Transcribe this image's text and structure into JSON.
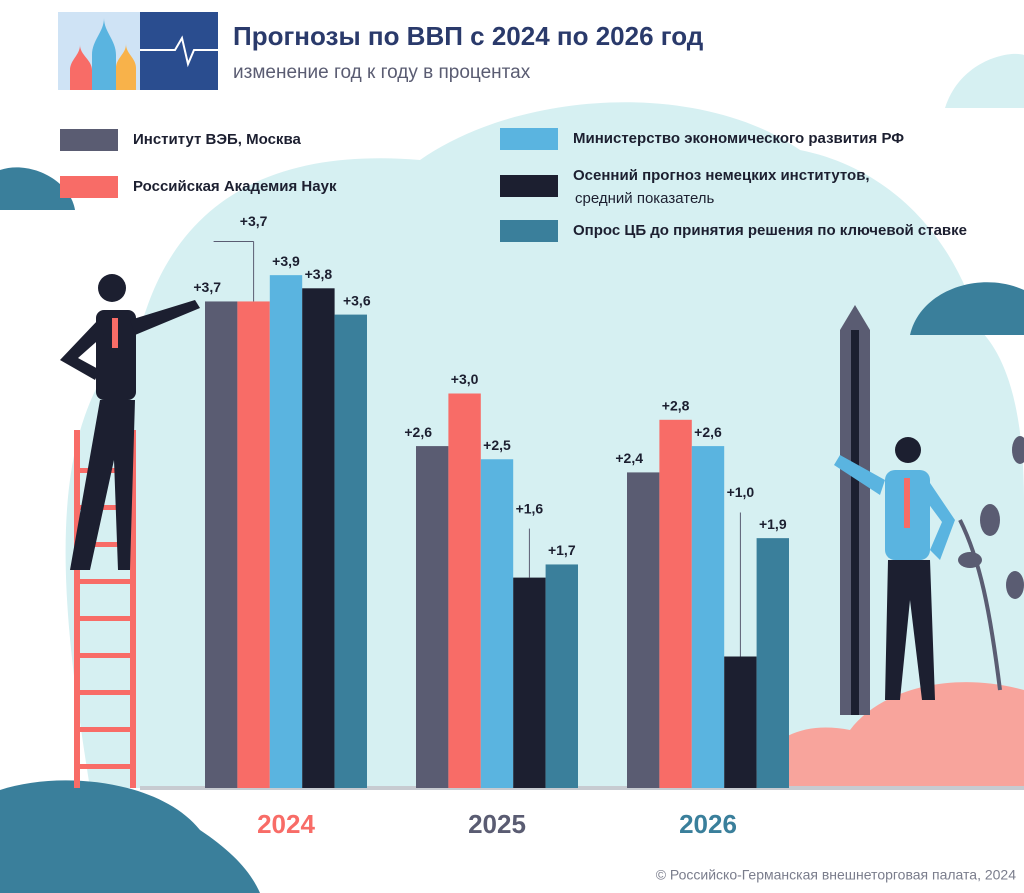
{
  "chart_data": {
    "type": "bar",
    "title": "Прогнозы по ВВП с 2024 по 2026 год",
    "subtitle": "изменение год к году в процентах",
    "source": "© Российско-Германская внешнеторговая палата, 2024",
    "categories": [
      "2024",
      "2025",
      "2026"
    ],
    "category_colors": [
      "#f86c67",
      "#5a5c72",
      "#3a7f9b"
    ],
    "ylim": [
      0,
      4
    ],
    "series": [
      {
        "name": "Институт ВЭБ, Москва",
        "color": "#5a5c72",
        "values": [
          3.7,
          2.6,
          2.4
        ],
        "value_labels": [
          "+3,7",
          "+2,6",
          "+2,4"
        ]
      },
      {
        "name": "Российская Академия Наук",
        "color": "#f86c67",
        "values": [
          3.7,
          3.0,
          2.8
        ],
        "value_labels": [
          "+3,7",
          "+3,0",
          "+2,8"
        ]
      },
      {
        "name": "Министерство экономического развития РФ",
        "color": "#5ab4e0",
        "values": [
          3.9,
          2.5,
          2.6
        ],
        "value_labels": [
          "+3,9",
          "+2,5",
          "+2,6"
        ]
      },
      {
        "name": "Осенний прогноз немецких институтов,",
        "note": "средний показатель",
        "color": "#1c1f30",
        "values": [
          3.8,
          1.6,
          1.0
        ],
        "value_labels": [
          "+3,8",
          "+1,6",
          "+1,0"
        ]
      },
      {
        "name": "Опрос ЦБ до принятия решения по ключевой ставке",
        "color": "#3a7f9b",
        "values": [
          3.6,
          1.7,
          1.9
        ],
        "value_labels": [
          "+3,6",
          "+1,7",
          "+1,9"
        ]
      }
    ]
  }
}
